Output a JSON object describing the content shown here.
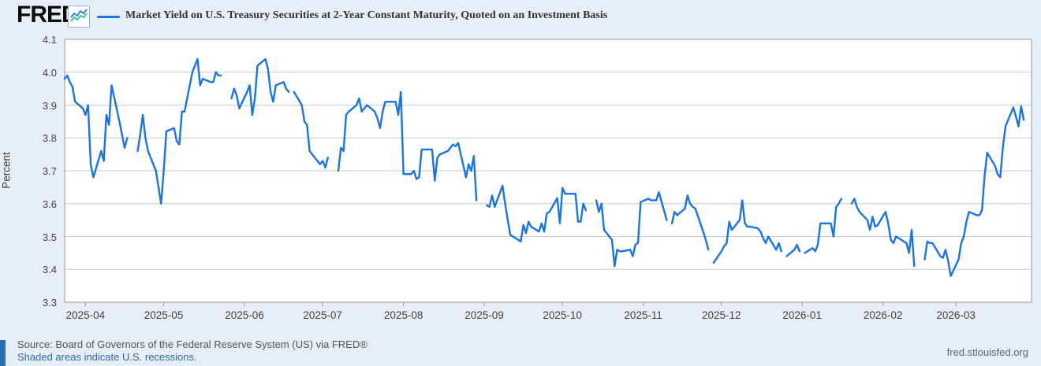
{
  "header": {
    "logo_text": "FRED",
    "logo_registered": "®",
    "legend_label": "Market Yield on U.S. Treasury Securities at 2-Year Constant Maturity, Quoted on an Investment Basis"
  },
  "footer": {
    "source_text": "Source: Board of Governors of the Federal Reserve System (US) via FRED®",
    "recession_note": "Shaded areas indicate U.S. recessions.",
    "site_link": "fred.stlouisfed.org"
  },
  "colors": {
    "line": "#1874e8",
    "page_background": "#e6eff7",
    "plot_background": "#ffffff",
    "gridline": "#cccccc",
    "plot_border": "#999999",
    "axis_text": "#424242",
    "link_blue": "#2f67ad",
    "logo_icon_line1": "#3b82d0",
    "logo_icon_line2": "#3fbfb0"
  },
  "chart_data": {
    "type": "line",
    "title": "Market Yield on U.S. Treasury Securities at 2-Year Constant Maturity, Quoted on an Investment Basis",
    "xlabel": "",
    "ylabel": "Percent",
    "ylim": [
      3.3,
      4.1
    ],
    "grid": "horizontal",
    "legend_position": "top",
    "y_tick_labels": [
      "4.1",
      "4.0",
      "3.9",
      "3.8",
      "3.7",
      "3.6",
      "3.5",
      "3.4",
      "3.3"
    ],
    "x_tick_labels": [
      "2025-04",
      "2025-05",
      "2025-06",
      "2025-07",
      "2025-08",
      "2025-09",
      "2025-10",
      "2025-11",
      "2025-12",
      "2026-01",
      "2026-02",
      "2026-03"
    ],
    "x_domain": [
      "2025-03-24",
      "2026-03-30"
    ],
    "series_name": "Market Yield on U.S. Treasury Securities at 2-Year Constant Maturity, Quoted on an Investment Basis",
    "dates": [
      "2025-03-24",
      "2025-03-25",
      "2025-03-26",
      "2025-03-27",
      "2025-03-28",
      "2025-03-31",
      "2025-04-01",
      "2025-04-02",
      "2025-04-03",
      "2025-04-04",
      "2025-04-07",
      "2025-04-08",
      "2025-04-09",
      "2025-04-10",
      "2025-04-11",
      "2025-04-14",
      "2025-04-15",
      "2025-04-16",
      "2025-04-17",
      "2025-04-18",
      "2025-04-21",
      "2025-04-22",
      "2025-04-23",
      "2025-04-24",
      "2025-04-25",
      "2025-04-28",
      "2025-04-29",
      "2025-04-30",
      "2025-05-01",
      "2025-05-02",
      "2025-05-05",
      "2025-05-06",
      "2025-05-07",
      "2025-05-08",
      "2025-05-09",
      "2025-05-12",
      "2025-05-13",
      "2025-05-14",
      "2025-05-15",
      "2025-05-16",
      "2025-05-19",
      "2025-05-20",
      "2025-05-21",
      "2025-05-22",
      "2025-05-23",
      "2025-05-26",
      "2025-05-27",
      "2025-05-28",
      "2025-05-29",
      "2025-05-30",
      "2025-06-02",
      "2025-06-03",
      "2025-06-04",
      "2025-06-05",
      "2025-06-06",
      "2025-06-09",
      "2025-06-10",
      "2025-06-11",
      "2025-06-12",
      "2025-06-13",
      "2025-06-16",
      "2025-06-17",
      "2025-06-18",
      "2025-06-19",
      "2025-06-20",
      "2025-06-23",
      "2025-06-24",
      "2025-06-25",
      "2025-06-26",
      "2025-06-27",
      "2025-06-30",
      "2025-07-01",
      "2025-07-02",
      "2025-07-03",
      "2025-07-04",
      "2025-07-07",
      "2025-07-08",
      "2025-07-09",
      "2025-07-10",
      "2025-07-11",
      "2025-07-14",
      "2025-07-15",
      "2025-07-16",
      "2025-07-17",
      "2025-07-18",
      "2025-07-21",
      "2025-07-22",
      "2025-07-23",
      "2025-07-24",
      "2025-07-25",
      "2025-07-28",
      "2025-07-29",
      "2025-07-30",
      "2025-07-31",
      "2025-08-01",
      "2025-08-04",
      "2025-08-05",
      "2025-08-06",
      "2025-08-07",
      "2025-08-08",
      "2025-08-11",
      "2025-08-12",
      "2025-08-13",
      "2025-08-14",
      "2025-08-15",
      "2025-08-18",
      "2025-08-19",
      "2025-08-20",
      "2025-08-21",
      "2025-08-22",
      "2025-08-25",
      "2025-08-26",
      "2025-08-27",
      "2025-08-28",
      "2025-08-29",
      "2025-09-01",
      "2025-09-02",
      "2025-09-03",
      "2025-09-04",
      "2025-09-05",
      "2025-09-08",
      "2025-09-09",
      "2025-09-10",
      "2025-09-11",
      "2025-09-12",
      "2025-09-15",
      "2025-09-16",
      "2025-09-17",
      "2025-09-18",
      "2025-09-19",
      "2025-09-22",
      "2025-09-23",
      "2025-09-24",
      "2025-09-25",
      "2025-09-26",
      "2025-09-29",
      "2025-09-30",
      "2025-10-01",
      "2025-10-02",
      "2025-10-03",
      "2025-10-06",
      "2025-10-07",
      "2025-10-08",
      "2025-10-09",
      "2025-10-10",
      "2025-10-13",
      "2025-10-14",
      "2025-10-15",
      "2025-10-16",
      "2025-10-17",
      "2025-10-20",
      "2025-10-21",
      "2025-10-22",
      "2025-10-23",
      "2025-10-24",
      "2025-10-27",
      "2025-10-28",
      "2025-10-29",
      "2025-10-30",
      "2025-10-31",
      "2025-11-03",
      "2025-11-04",
      "2025-11-05",
      "2025-11-06",
      "2025-11-07",
      "2025-11-10",
      "2025-11-11",
      "2025-11-12",
      "2025-11-13",
      "2025-11-14",
      "2025-11-17",
      "2025-11-18",
      "2025-11-19",
      "2025-11-20",
      "2025-11-21",
      "2025-11-24",
      "2025-11-25",
      "2025-11-26",
      "2025-11-27",
      "2025-11-28",
      "2025-12-01",
      "2025-12-02",
      "2025-12-03",
      "2025-12-04",
      "2025-12-05",
      "2025-12-08",
      "2025-12-09",
      "2025-12-10",
      "2025-12-11",
      "2025-12-12",
      "2025-12-15",
      "2025-12-16",
      "2025-12-17",
      "2025-12-18",
      "2025-12-19",
      "2025-12-22",
      "2025-12-23",
      "2025-12-24",
      "2025-12-25",
      "2025-12-26",
      "2025-12-29",
      "2025-12-30",
      "2025-12-31",
      "2026-01-01",
      "2026-01-02",
      "2026-01-05",
      "2026-01-06",
      "2026-01-07",
      "2026-01-08",
      "2026-01-09",
      "2026-01-12",
      "2026-01-13",
      "2026-01-14",
      "2026-01-15",
      "2026-01-16",
      "2026-01-19",
      "2026-01-20",
      "2026-01-21",
      "2026-01-22",
      "2026-01-23",
      "2026-01-26",
      "2026-01-27",
      "2026-01-28",
      "2026-01-29",
      "2026-01-30",
      "2026-02-02",
      "2026-02-03",
      "2026-02-04",
      "2026-02-05",
      "2026-02-06",
      "2026-02-09",
      "2026-02-10",
      "2026-02-11",
      "2026-02-12",
      "2026-02-13",
      "2026-02-16",
      "2026-02-17",
      "2026-02-18",
      "2026-02-19",
      "2026-02-20",
      "2026-02-23",
      "2026-02-24",
      "2026-02-25",
      "2026-02-26",
      "2026-02-27",
      "2026-03-02",
      "2026-03-03",
      "2026-03-04",
      "2026-03-05",
      "2026-03-06",
      "2026-03-09",
      "2026-03-10",
      "2026-03-11",
      "2026-03-12",
      "2026-03-13",
      "2026-03-16",
      "2026-03-17",
      "2026-03-18",
      "2026-03-19",
      "2026-03-20",
      "2026-03-23",
      "2026-03-24",
      "2026-03-25",
      "2026-03-26",
      "2026-03-27"
    ],
    "values": [
      3.98,
      3.99,
      3.97,
      3.955,
      3.91,
      3.89,
      3.87,
      3.9,
      3.72,
      3.68,
      3.76,
      3.73,
      3.87,
      3.84,
      3.96,
      3.85,
      3.81,
      3.77,
      3.8,
      null,
      3.76,
      3.81,
      3.87,
      3.8,
      3.76,
      3.7,
      3.65,
      3.6,
      3.7,
      3.82,
      3.83,
      3.79,
      3.78,
      3.88,
      3.88,
      4.0,
      4.02,
      4.04,
      3.96,
      3.98,
      3.97,
      3.97,
      4.0,
      3.99,
      3.99,
      null,
      3.92,
      3.95,
      3.93,
      3.89,
      3.94,
      3.96,
      3.87,
      3.92,
      4.02,
      4.04,
      4.01,
      3.94,
      3.91,
      3.96,
      3.97,
      3.95,
      3.94,
      null,
      3.94,
      3.9,
      3.85,
      3.84,
      3.76,
      3.75,
      3.72,
      3.73,
      3.71,
      3.74,
      null,
      3.7,
      3.77,
      3.76,
      3.87,
      3.88,
      3.9,
      3.92,
      3.88,
      3.89,
      3.9,
      3.88,
      3.86,
      3.83,
      3.88,
      3.91,
      3.91,
      3.91,
      3.87,
      3.94,
      3.69,
      3.69,
      3.7,
      3.675,
      3.68,
      3.765,
      3.765,
      3.765,
      3.67,
      3.74,
      3.75,
      3.76,
      3.77,
      3.78,
      3.775,
      3.785,
      3.68,
      3.72,
      3.7,
      3.745,
      3.61,
      null,
      3.595,
      3.59,
      3.625,
      3.59,
      3.655,
      3.6,
      3.55,
      3.505,
      3.5,
      3.485,
      3.535,
      3.51,
      3.545,
      3.53,
      3.515,
      3.54,
      3.515,
      3.57,
      3.575,
      3.617,
      3.54,
      3.648,
      3.63,
      3.63,
      3.63,
      3.545,
      3.545,
      3.6,
      3.58,
      null,
      3.61,
      3.575,
      3.6,
      3.52,
      3.49,
      3.41,
      3.46,
      3.455,
      3.455,
      3.46,
      3.44,
      3.475,
      3.48,
      3.605,
      3.615,
      3.61,
      3.61,
      3.61,
      3.635,
      3.55,
      null,
      3.54,
      3.575,
      3.565,
      3.585,
      3.625,
      3.6,
      3.59,
      3.585,
      3.515,
      3.49,
      3.46,
      null,
      3.42,
      3.455,
      3.47,
      3.48,
      3.545,
      3.52,
      3.55,
      3.61,
      3.54,
      3.53,
      3.53,
      3.525,
      3.515,
      3.495,
      3.48,
      3.5,
      3.46,
      3.48,
      3.455,
      null,
      3.44,
      3.46,
      3.475,
      3.455,
      null,
      3.45,
      3.465,
      3.455,
      3.475,
      3.54,
      3.54,
      3.54,
      3.5,
      3.59,
      3.6,
      3.615,
      null,
      3.6,
      3.615,
      3.59,
      3.575,
      3.55,
      3.52,
      3.56,
      3.53,
      3.535,
      3.575,
      3.54,
      3.49,
      3.48,
      3.5,
      3.485,
      3.48,
      3.45,
      3.52,
      3.41,
      null,
      3.43,
      3.485,
      3.48,
      3.48,
      3.44,
      3.435,
      3.46,
      3.425,
      3.38,
      3.43,
      3.48,
      3.5,
      3.545,
      3.575,
      3.565,
      3.565,
      3.58,
      3.685,
      3.755,
      3.715,
      3.69,
      3.68,
      3.77,
      3.835,
      3.893,
      3.865,
      3.835,
      3.897,
      3.855
    ]
  }
}
